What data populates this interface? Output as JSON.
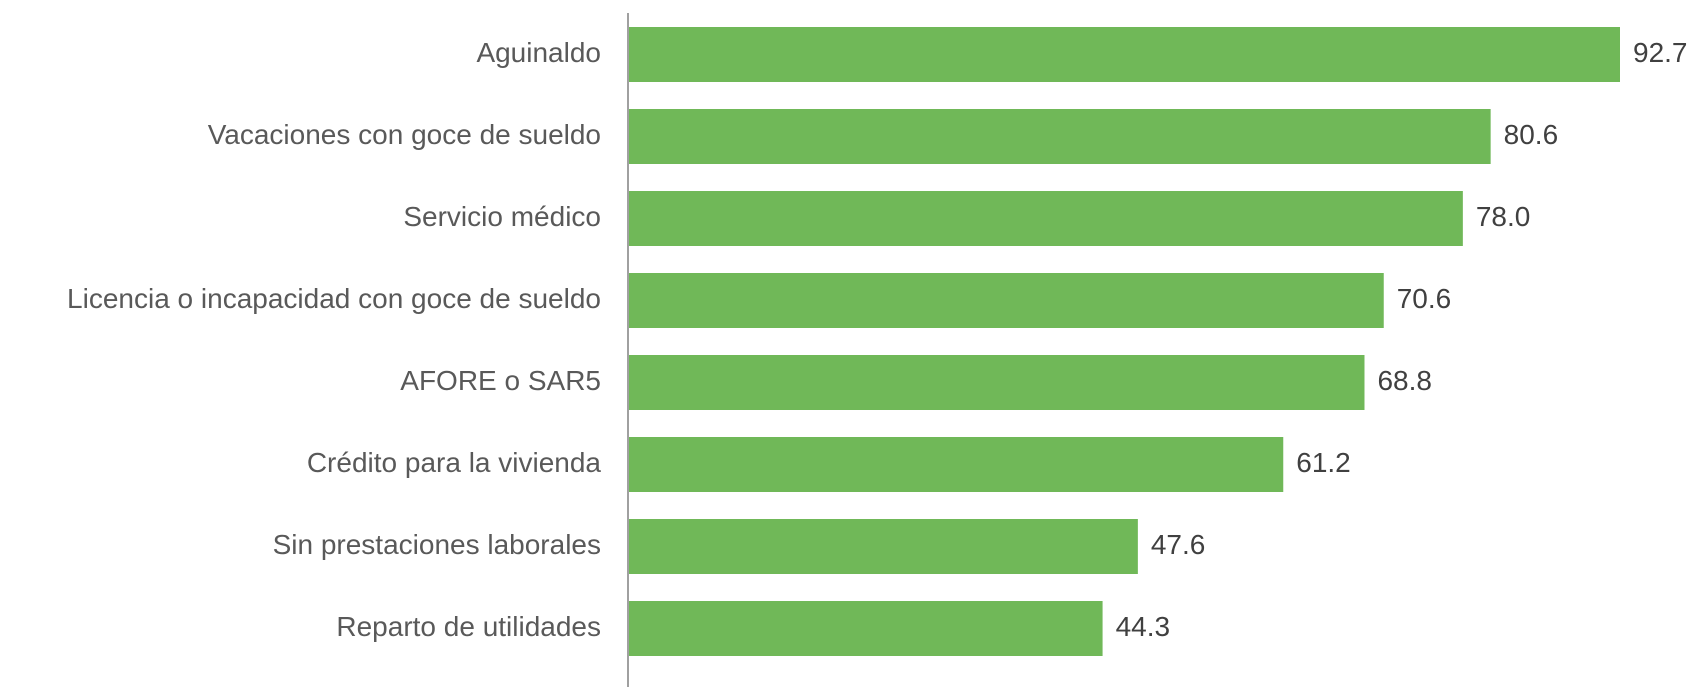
{
  "chart_data": {
    "type": "bar",
    "orientation": "horizontal",
    "categories": [
      "Aguinaldo",
      "Vacaciones con goce de sueldo",
      "Servicio médico",
      "Licencia o incapacidad con goce de sueldo",
      "AFORE o SAR5",
      "Crédito para la vivienda",
      "Sin prestaciones laborales",
      "Reparto de utilidades"
    ],
    "values": [
      92.7,
      80.6,
      78.0,
      70.6,
      68.8,
      61.2,
      47.6,
      44.3
    ],
    "value_labels": [
      "92.7",
      "80.6",
      "78.0",
      "70.6",
      "68.8",
      "61.2",
      "47.6",
      "44.3"
    ],
    "color": "#70b858"
  }
}
